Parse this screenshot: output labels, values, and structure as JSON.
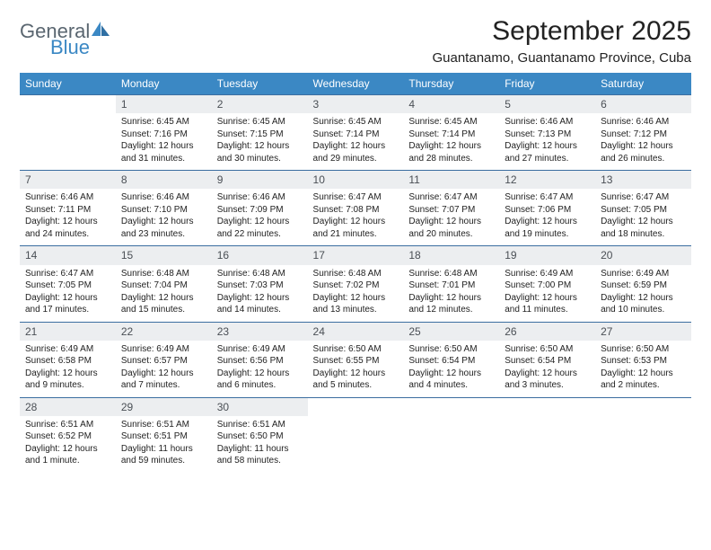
{
  "brand": {
    "line1": "General",
    "line2": "Blue"
  },
  "title": "September 2025",
  "location": "Guantanamo, Guantanamo Province, Cuba",
  "colors": {
    "header_bg": "#3b88c4",
    "header_text": "#ffffff",
    "daybar_bg": "#eceef0",
    "daybar_text": "#4a4f55",
    "row_border": "#3b6ea0",
    "brand_gray": "#5a6670",
    "brand_blue": "#3b88c4",
    "page_bg": "#ffffff",
    "body_text": "#222222"
  },
  "day_headers": [
    "Sunday",
    "Monday",
    "Tuesday",
    "Wednesday",
    "Thursday",
    "Friday",
    "Saturday"
  ],
  "weeks": [
    [
      {
        "empty": true
      },
      {
        "n": "1",
        "sr": "6:45 AM",
        "ss": "7:16 PM",
        "dl": "12 hours and 31 minutes."
      },
      {
        "n": "2",
        "sr": "6:45 AM",
        "ss": "7:15 PM",
        "dl": "12 hours and 30 minutes."
      },
      {
        "n": "3",
        "sr": "6:45 AM",
        "ss": "7:14 PM",
        "dl": "12 hours and 29 minutes."
      },
      {
        "n": "4",
        "sr": "6:45 AM",
        "ss": "7:14 PM",
        "dl": "12 hours and 28 minutes."
      },
      {
        "n": "5",
        "sr": "6:46 AM",
        "ss": "7:13 PM",
        "dl": "12 hours and 27 minutes."
      },
      {
        "n": "6",
        "sr": "6:46 AM",
        "ss": "7:12 PM",
        "dl": "12 hours and 26 minutes."
      }
    ],
    [
      {
        "n": "7",
        "sr": "6:46 AM",
        "ss": "7:11 PM",
        "dl": "12 hours and 24 minutes."
      },
      {
        "n": "8",
        "sr": "6:46 AM",
        "ss": "7:10 PM",
        "dl": "12 hours and 23 minutes."
      },
      {
        "n": "9",
        "sr": "6:46 AM",
        "ss": "7:09 PM",
        "dl": "12 hours and 22 minutes."
      },
      {
        "n": "10",
        "sr": "6:47 AM",
        "ss": "7:08 PM",
        "dl": "12 hours and 21 minutes."
      },
      {
        "n": "11",
        "sr": "6:47 AM",
        "ss": "7:07 PM",
        "dl": "12 hours and 20 minutes."
      },
      {
        "n": "12",
        "sr": "6:47 AM",
        "ss": "7:06 PM",
        "dl": "12 hours and 19 minutes."
      },
      {
        "n": "13",
        "sr": "6:47 AM",
        "ss": "7:05 PM",
        "dl": "12 hours and 18 minutes."
      }
    ],
    [
      {
        "n": "14",
        "sr": "6:47 AM",
        "ss": "7:05 PM",
        "dl": "12 hours and 17 minutes."
      },
      {
        "n": "15",
        "sr": "6:48 AM",
        "ss": "7:04 PM",
        "dl": "12 hours and 15 minutes."
      },
      {
        "n": "16",
        "sr": "6:48 AM",
        "ss": "7:03 PM",
        "dl": "12 hours and 14 minutes."
      },
      {
        "n": "17",
        "sr": "6:48 AM",
        "ss": "7:02 PM",
        "dl": "12 hours and 13 minutes."
      },
      {
        "n": "18",
        "sr": "6:48 AM",
        "ss": "7:01 PM",
        "dl": "12 hours and 12 minutes."
      },
      {
        "n": "19",
        "sr": "6:49 AM",
        "ss": "7:00 PM",
        "dl": "12 hours and 11 minutes."
      },
      {
        "n": "20",
        "sr": "6:49 AM",
        "ss": "6:59 PM",
        "dl": "12 hours and 10 minutes."
      }
    ],
    [
      {
        "n": "21",
        "sr": "6:49 AM",
        "ss": "6:58 PM",
        "dl": "12 hours and 9 minutes."
      },
      {
        "n": "22",
        "sr": "6:49 AM",
        "ss": "6:57 PM",
        "dl": "12 hours and 7 minutes."
      },
      {
        "n": "23",
        "sr": "6:49 AM",
        "ss": "6:56 PM",
        "dl": "12 hours and 6 minutes."
      },
      {
        "n": "24",
        "sr": "6:50 AM",
        "ss": "6:55 PM",
        "dl": "12 hours and 5 minutes."
      },
      {
        "n": "25",
        "sr": "6:50 AM",
        "ss": "6:54 PM",
        "dl": "12 hours and 4 minutes."
      },
      {
        "n": "26",
        "sr": "6:50 AM",
        "ss": "6:54 PM",
        "dl": "12 hours and 3 minutes."
      },
      {
        "n": "27",
        "sr": "6:50 AM",
        "ss": "6:53 PM",
        "dl": "12 hours and 2 minutes."
      }
    ],
    [
      {
        "n": "28",
        "sr": "6:51 AM",
        "ss": "6:52 PM",
        "dl": "12 hours and 1 minute."
      },
      {
        "n": "29",
        "sr": "6:51 AM",
        "ss": "6:51 PM",
        "dl": "11 hours and 59 minutes."
      },
      {
        "n": "30",
        "sr": "6:51 AM",
        "ss": "6:50 PM",
        "dl": "11 hours and 58 minutes."
      },
      {
        "empty": true
      },
      {
        "empty": true
      },
      {
        "empty": true
      },
      {
        "empty": true
      }
    ]
  ],
  "labels": {
    "sunrise_prefix": "Sunrise: ",
    "sunset_prefix": "Sunset: ",
    "daylight_prefix": "Daylight: "
  }
}
